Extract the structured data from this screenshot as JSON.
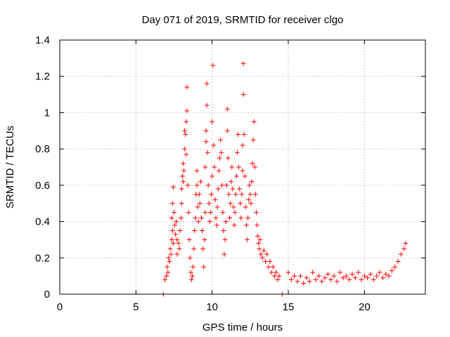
{
  "chart_data": {
    "type": "scatter",
    "title": "Day 071 of 2019, SRMTID for receiver clgo",
    "xlabel": "GPS time / hours",
    "ylabel": "SRMTID / TECUs",
    "xlim": [
      0,
      24
    ],
    "ylim": [
      0,
      1.4
    ],
    "x_ticks": [
      0,
      5,
      10,
      15,
      20
    ],
    "y_ticks": [
      0,
      0.2,
      0.4,
      0.6,
      0.8,
      1,
      1.2,
      1.4
    ],
    "x_tick_labels": [
      "0",
      "5",
      "10",
      "15",
      "20"
    ],
    "y_tick_labels": [
      "0",
      "0.2",
      "0.4",
      "0.6",
      "0.8",
      "1",
      "1.2",
      "1.4"
    ],
    "grid": true,
    "marker_color": "#ff0000",
    "series": [
      {
        "name": "SRMTID",
        "marker": "plus",
        "points": [
          [
            6.9,
            0.08
          ],
          [
            7.0,
            0.1
          ],
          [
            7.05,
            0.15
          ],
          [
            7.1,
            0.12
          ],
          [
            7.15,
            0.2
          ],
          [
            7.2,
            0.18
          ],
          [
            7.25,
            0.25
          ],
          [
            7.3,
            0.22
          ],
          [
            7.35,
            0.3
          ],
          [
            7.35,
            0.42
          ],
          [
            7.4,
            0.35
          ],
          [
            7.4,
            0.5
          ],
          [
            7.45,
            0.28
          ],
          [
            7.45,
            0.59
          ],
          [
            7.5,
            0.45
          ],
          [
            7.55,
            0.38
          ],
          [
            7.6,
            0.33
          ],
          [
            7.65,
            0.4
          ],
          [
            7.7,
            0.3
          ],
          [
            7.7,
            0.22
          ],
          [
            7.8,
            0.28
          ],
          [
            7.85,
            0.25
          ],
          [
            7.9,
            0.35
          ],
          [
            7.95,
            0.42
          ],
          [
            8.0,
            0.5
          ],
          [
            8.0,
            0.58
          ],
          [
            8.05,
            0.65
          ],
          [
            8.1,
            0.62
          ],
          [
            8.1,
            0.72
          ],
          [
            8.15,
            0.68
          ],
          [
            8.2,
            0.8
          ],
          [
            8.2,
            0.9
          ],
          [
            8.25,
            0.88
          ],
          [
            8.3,
            0.77
          ],
          [
            8.3,
            0.95
          ],
          [
            8.35,
            1.14
          ],
          [
            8.35,
            1.01
          ],
          [
            8.4,
            0.6
          ],
          [
            8.45,
            0.45
          ],
          [
            8.5,
            0.3
          ],
          [
            8.55,
            0.2
          ],
          [
            8.6,
            0.12
          ],
          [
            8.65,
            0.08
          ],
          [
            8.7,
            0.1
          ],
          [
            8.75,
            0.15
          ],
          [
            8.8,
            0.25
          ],
          [
            8.85,
            0.35
          ],
          [
            8.9,
            0.42
          ],
          [
            8.95,
            0.55
          ],
          [
            9.0,
            0.6
          ],
          [
            9.0,
            0.68
          ],
          [
            9.05,
            0.48
          ],
          [
            9.1,
            0.4
          ],
          [
            9.15,
            0.55
          ],
          [
            9.2,
            0.5
          ],
          [
            9.25,
            0.62
          ],
          [
            9.3,
            0.42
          ],
          [
            9.35,
            0.35
          ],
          [
            9.4,
            0.25
          ],
          [
            9.45,
            0.15
          ],
          [
            9.5,
            0.3
          ],
          [
            9.55,
            0.45
          ],
          [
            9.55,
            0.7
          ],
          [
            9.6,
            0.84
          ],
          [
            9.6,
            0.9
          ],
          [
            9.65,
            1.16
          ],
          [
            9.65,
            1.04
          ],
          [
            9.7,
            0.78
          ],
          [
            9.75,
            0.6
          ],
          [
            9.8,
            0.5
          ],
          [
            9.85,
            0.4
          ],
          [
            9.9,
            0.45
          ],
          [
            9.95,
            0.55
          ],
          [
            10.0,
            0.65
          ],
          [
            10.0,
            0.95
          ],
          [
            10.05,
            1.26
          ],
          [
            10.1,
            0.82
          ],
          [
            10.15,
            0.7
          ],
          [
            10.2,
            0.52
          ],
          [
            10.25,
            0.42
          ],
          [
            10.3,
            0.38
          ],
          [
            10.35,
            0.48
          ],
          [
            10.4,
            0.58
          ],
          [
            10.45,
            0.68
          ],
          [
            10.5,
            0.75
          ],
          [
            10.55,
            0.85
          ],
          [
            10.6,
            0.78
          ],
          [
            10.65,
            0.6
          ],
          [
            10.7,
            0.45
          ],
          [
            10.75,
            0.35
          ],
          [
            10.8,
            0.22
          ],
          [
            10.85,
            0.3
          ],
          [
            10.9,
            0.4
          ],
          [
            10.95,
            0.6
          ],
          [
            11.0,
            0.9
          ],
          [
            11.0,
            1.02
          ],
          [
            11.05,
            0.75
          ],
          [
            11.1,
            0.55
          ],
          [
            11.15,
            0.42
          ],
          [
            11.2,
            0.5
          ],
          [
            11.25,
            0.62
          ],
          [
            11.3,
            0.7
          ],
          [
            11.35,
            0.58
          ],
          [
            11.4,
            0.48
          ],
          [
            11.45,
            0.38
          ],
          [
            11.5,
            0.45
          ],
          [
            11.55,
            0.55
          ],
          [
            11.6,
            0.65
          ],
          [
            11.65,
            0.78
          ],
          [
            11.7,
            0.88
          ],
          [
            11.75,
            0.7
          ],
          [
            11.8,
            0.58
          ],
          [
            11.85,
            0.5
          ],
          [
            11.9,
            0.42
          ],
          [
            11.95,
            0.55
          ],
          [
            12.0,
            0.68
          ],
          [
            12.0,
            0.82
          ],
          [
            12.05,
            1.27
          ],
          [
            12.05,
            1.1
          ],
          [
            12.1,
            0.88
          ],
          [
            12.15,
            0.65
          ],
          [
            12.2,
            0.48
          ],
          [
            12.25,
            0.38
          ],
          [
            12.3,
            0.3
          ],
          [
            12.35,
            0.42
          ],
          [
            12.4,
            0.52
          ],
          [
            12.45,
            0.6
          ],
          [
            12.5,
            0.55
          ],
          [
            12.55,
            0.5
          ],
          [
            12.6,
            0.62
          ],
          [
            12.65,
            0.72
          ],
          [
            12.7,
            0.85
          ],
          [
            12.75,
            0.95
          ],
          [
            12.8,
            0.7
          ],
          [
            12.85,
            0.55
          ],
          [
            12.9,
            0.45
          ],
          [
            12.95,
            0.38
          ],
          [
            13.0,
            0.32
          ],
          [
            13.05,
            0.28
          ],
          [
            13.1,
            0.25
          ],
          [
            13.15,
            0.3
          ],
          [
            13.2,
            0.22
          ],
          [
            13.3,
            0.2
          ],
          [
            13.4,
            0.24
          ],
          [
            13.5,
            0.18
          ],
          [
            13.6,
            0.22
          ],
          [
            13.7,
            0.15
          ],
          [
            13.8,
            0.18
          ],
          [
            13.9,
            0.12
          ],
          [
            14.0,
            0.15
          ],
          [
            14.1,
            0.1
          ],
          [
            14.2,
            0.12
          ],
          [
            14.3,
            0.08
          ],
          [
            14.4,
            0.1
          ],
          [
            14.6,
            0.0
          ],
          [
            15.0,
            0.12
          ],
          [
            15.2,
            0.08
          ],
          [
            15.4,
            0.1
          ],
          [
            15.6,
            0.07
          ],
          [
            15.8,
            0.1
          ],
          [
            16.0,
            0.06
          ],
          [
            16.2,
            0.09
          ],
          [
            16.4,
            0.07
          ],
          [
            16.6,
            0.12
          ],
          [
            16.8,
            0.08
          ],
          [
            17.0,
            0.1
          ],
          [
            17.2,
            0.07
          ],
          [
            17.4,
            0.09
          ],
          [
            17.6,
            0.11
          ],
          [
            17.8,
            0.08
          ],
          [
            18.0,
            0.1
          ],
          [
            18.2,
            0.07
          ],
          [
            18.4,
            0.12
          ],
          [
            18.6,
            0.09
          ],
          [
            18.8,
            0.1
          ],
          [
            19.0,
            0.08
          ],
          [
            19.2,
            0.11
          ],
          [
            19.4,
            0.09
          ],
          [
            19.6,
            0.12
          ],
          [
            19.8,
            0.08
          ],
          [
            20.0,
            0.1
          ],
          [
            20.2,
            0.09
          ],
          [
            20.4,
            0.11
          ],
          [
            20.6,
            0.08
          ],
          [
            20.8,
            0.1
          ],
          [
            21.0,
            0.12
          ],
          [
            21.2,
            0.09
          ],
          [
            21.4,
            0.11
          ],
          [
            21.6,
            0.1
          ],
          [
            21.8,
            0.13
          ],
          [
            22.0,
            0.15
          ],
          [
            22.2,
            0.18
          ],
          [
            22.4,
            0.22
          ],
          [
            22.6,
            0.25
          ],
          [
            22.7,
            0.28
          ],
          [
            6.8,
            0.0
          ]
        ]
      }
    ]
  }
}
